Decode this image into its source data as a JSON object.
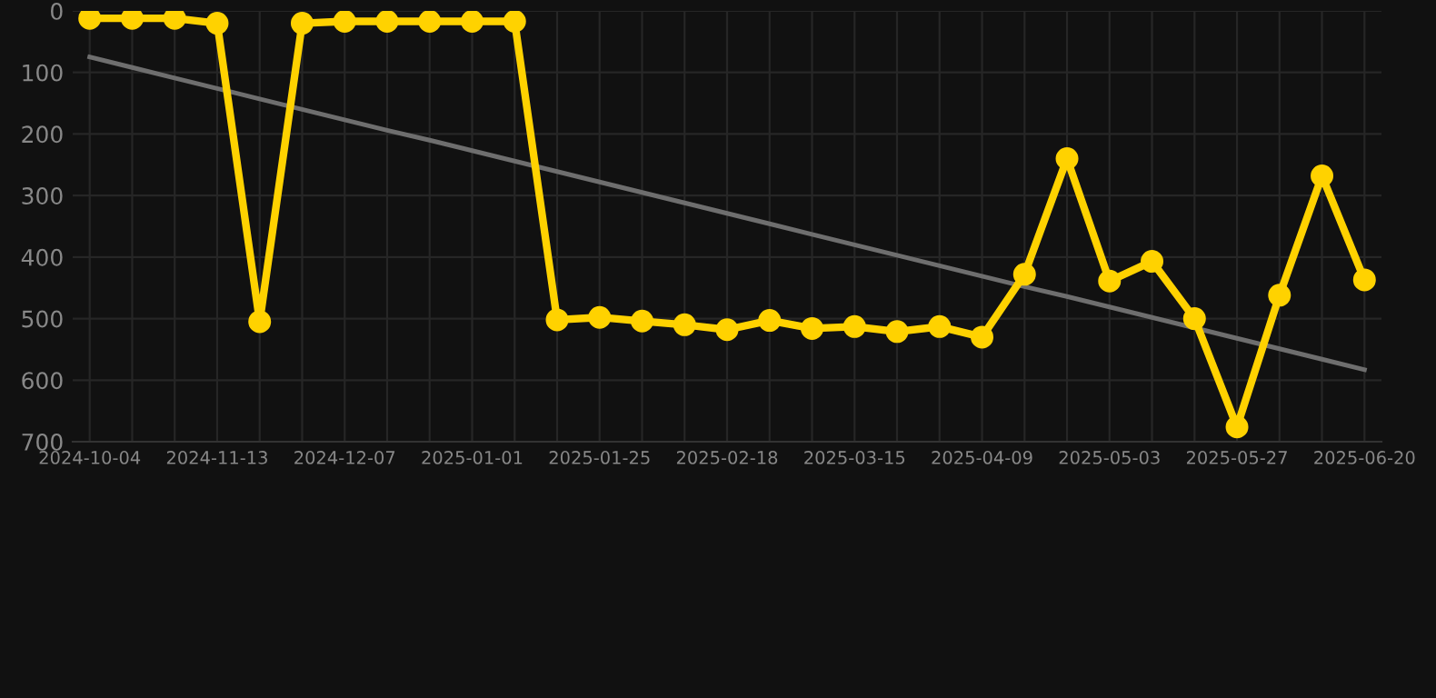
{
  "chart_data": {
    "type": "line",
    "categories": [
      "2024-10-04",
      null,
      null,
      "2024-11-13",
      null,
      null,
      "2024-12-07",
      null,
      null,
      "2025-01-01",
      null,
      null,
      "2025-01-25",
      null,
      null,
      "2025-02-18",
      null,
      null,
      "2025-03-15",
      null,
      null,
      "2025-04-09",
      null,
      null,
      "2025-05-03",
      null,
      null,
      "2025-05-27",
      null,
      null,
      "2025-06-20"
    ],
    "series": [
      {
        "color": "#ffd200",
        "marker": "circle",
        "values": [
          12,
          12,
          12,
          20,
          505,
          20,
          17,
          17,
          17,
          17,
          17,
          502,
          498,
          504,
          510,
          518,
          503,
          516,
          513,
          521,
          513,
          530,
          428,
          240,
          439,
          407,
          500,
          676,
          462,
          268,
          437
        ]
      },
      {
        "type": "line",
        "color": "#6e6e6e",
        "marker": "none",
        "values": [
          75,
          92,
          109,
          126,
          143,
          160,
          177,
          194,
          210,
          227,
          244,
          261,
          278,
          295,
          312,
          329,
          346,
          363,
          380,
          397,
          414,
          431,
          448,
          464,
          481,
          498,
          515,
          532,
          549,
          566,
          583
        ]
      }
    ],
    "ylim": [
      700,
      0
    ],
    "yticks": [
      0,
      100,
      200,
      300,
      400,
      500,
      600,
      700
    ],
    "grid": true
  }
}
